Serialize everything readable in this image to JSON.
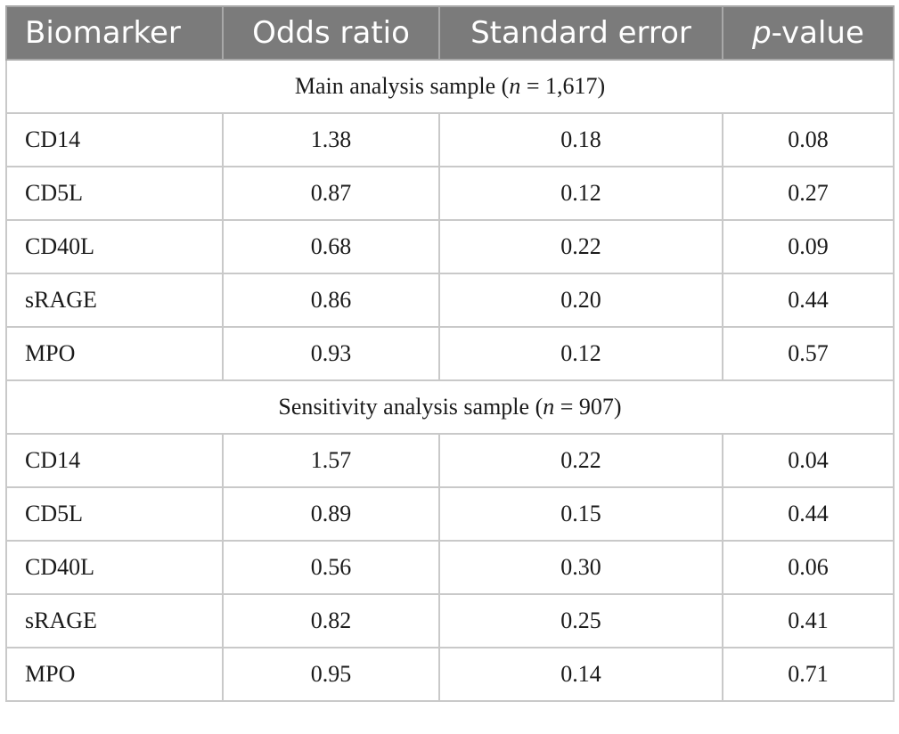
{
  "headers": {
    "biomarker": "Biomarker",
    "odds_ratio": "Odds ratio",
    "standard_error": "Standard error",
    "p_value_italic": "p",
    "p_value_rest": "-value"
  },
  "sections": [
    {
      "title_pre": "Main analysis sample (",
      "title_n": "n",
      "title_post": " = 1,617)",
      "rows": [
        {
          "biomarker": "CD14",
          "odds_ratio": "1.38",
          "standard_error": "0.18",
          "p_value": "0.08"
        },
        {
          "biomarker": "CD5L",
          "odds_ratio": "0.87",
          "standard_error": "0.12",
          "p_value": "0.27"
        },
        {
          "biomarker": "CD40L",
          "odds_ratio": "0.68",
          "standard_error": "0.22",
          "p_value": "0.09"
        },
        {
          "biomarker": "sRAGE",
          "odds_ratio": "0.86",
          "standard_error": "0.20",
          "p_value": "0.44"
        },
        {
          "biomarker": "MPO",
          "odds_ratio": "0.93",
          "standard_error": "0.12",
          "p_value": "0.57"
        }
      ]
    },
    {
      "title_pre": "Sensitivity analysis sample (",
      "title_n": "n",
      "title_post": " = 907)",
      "rows": [
        {
          "biomarker": "CD14",
          "odds_ratio": "1.57",
          "standard_error": "0.22",
          "p_value": "0.04"
        },
        {
          "biomarker": "CD5L",
          "odds_ratio": "0.89",
          "standard_error": "0.15",
          "p_value": "0.44"
        },
        {
          "biomarker": "CD40L",
          "odds_ratio": "0.56",
          "standard_error": "0.30",
          "p_value": "0.06"
        },
        {
          "biomarker": "sRAGE",
          "odds_ratio": "0.82",
          "standard_error": "0.25",
          "p_value": "0.41"
        },
        {
          "biomarker": "MPO",
          "odds_ratio": "0.95",
          "standard_error": "0.14",
          "p_value": "0.71"
        }
      ]
    }
  ],
  "colors": {
    "header_bg": "#7b7b7b",
    "header_text": "#ffffff",
    "grid_lines": "#c9c9c9"
  }
}
